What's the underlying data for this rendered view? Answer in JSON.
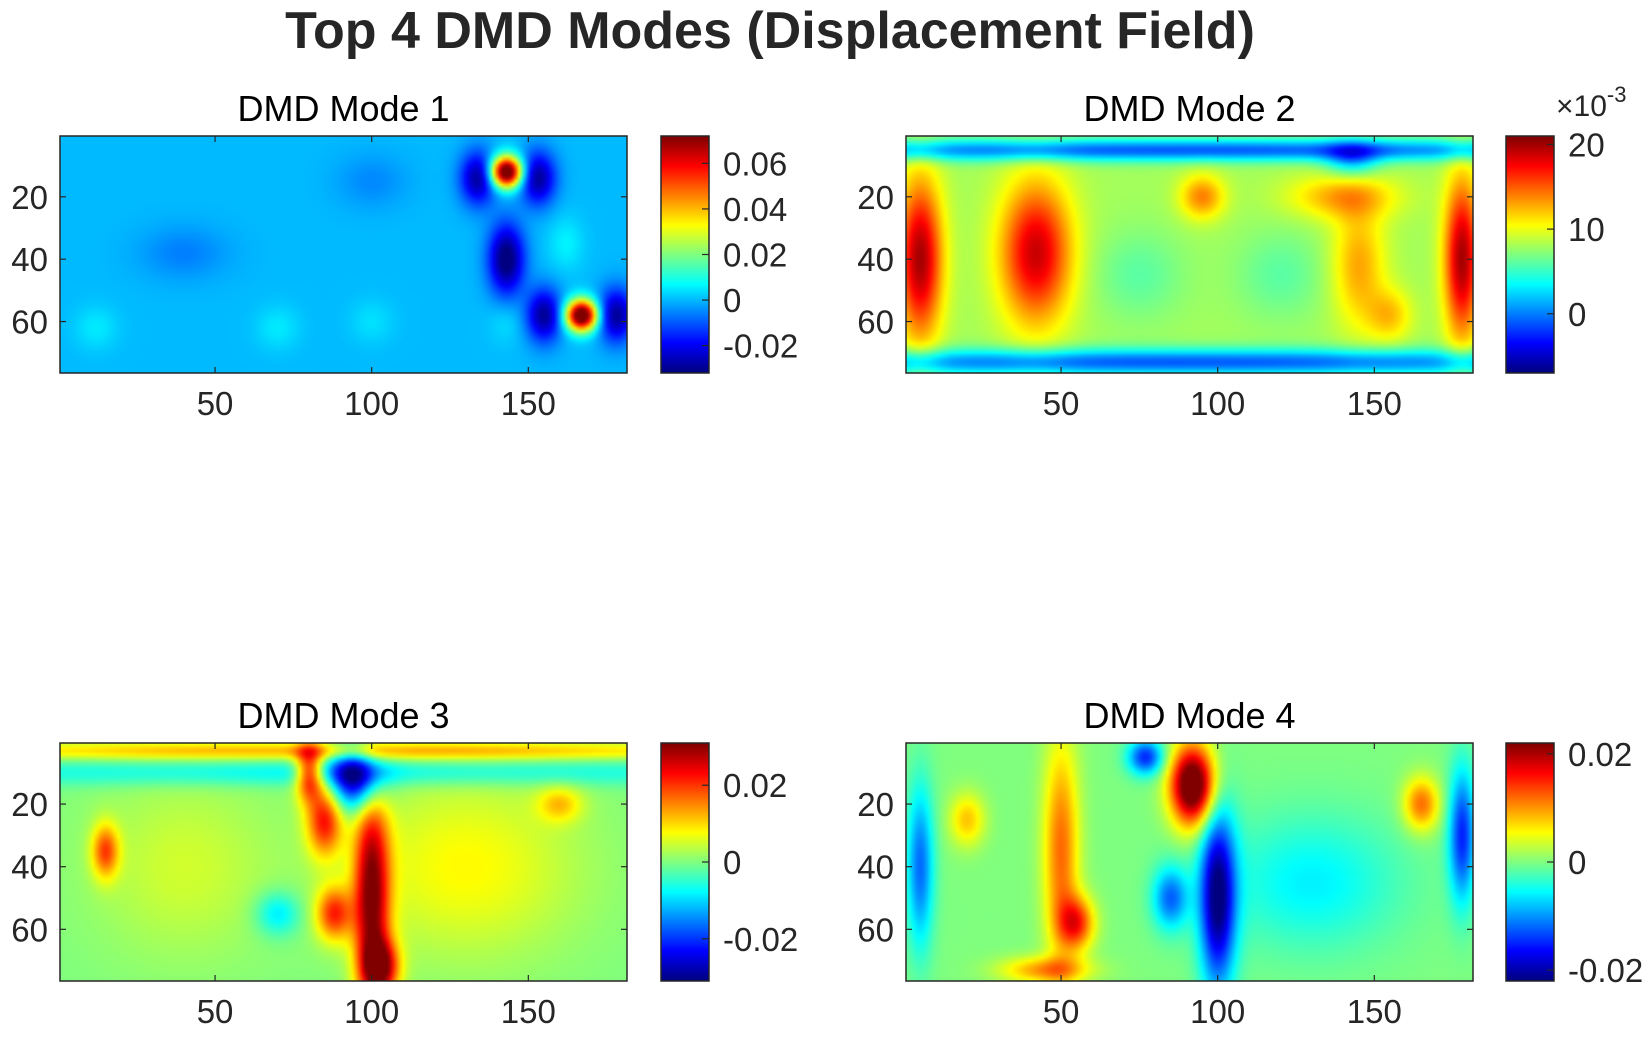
{
  "chart_data": [
    {
      "type": "heatmap",
      "title": "DMD Mode 1",
      "colormap": "jet",
      "xlim": [
        0.5,
        181.5
      ],
      "ylim": [
        0.5,
        76.5
      ],
      "y_reversed": true,
      "xticks": [
        50,
        100,
        150
      ],
      "yticks": [
        20,
        40,
        60
      ],
      "clim": [
        -0.032,
        0.072
      ],
      "colorbar_ticks": [
        -0.02,
        0,
        0.02,
        0.04,
        0.06
      ],
      "colorbar_tick_labels": [
        "-0.02",
        "0",
        "0.02",
        "0.04",
        "0.06"
      ],
      "colorbar_multiplier": "",
      "background": 0.0,
      "features": [
        {
          "x": 143,
          "y": 12,
          "sx": 3.5,
          "sy": 3.5,
          "v": 0.085
        },
        {
          "x": 167,
          "y": 58,
          "sx": 3.5,
          "sy": 3.5,
          "v": 0.085
        },
        {
          "x": 134,
          "y": 14,
          "sx": 4,
          "sy": 6,
          "v": -0.03
        },
        {
          "x": 153,
          "y": 14,
          "sx": 4,
          "sy": 6,
          "v": -0.03
        },
        {
          "x": 143,
          "y": 40,
          "sx": 4,
          "sy": 8,
          "v": -0.035
        },
        {
          "x": 155,
          "y": 58,
          "sx": 4,
          "sy": 6,
          "v": -0.03
        },
        {
          "x": 178,
          "y": 58,
          "sx": 4,
          "sy": 6,
          "v": -0.03
        },
        {
          "x": 162,
          "y": 35,
          "sx": 4,
          "sy": 6,
          "v": 0.006
        },
        {
          "x": 143,
          "y": 60,
          "sx": 4,
          "sy": 5,
          "v": 0.004
        },
        {
          "x": 40,
          "y": 38,
          "sx": 10,
          "sy": 6,
          "v": -0.006
        },
        {
          "x": 100,
          "y": 15,
          "sx": 8,
          "sy": 6,
          "v": -0.005
        },
        {
          "x": 12,
          "y": 62,
          "sx": 5,
          "sy": 5,
          "v": 0.005
        },
        {
          "x": 70,
          "y": 62,
          "sx": 5,
          "sy": 5,
          "v": 0.005
        },
        {
          "x": 100,
          "y": 60,
          "sx": 5,
          "sy": 5,
          "v": 0.004
        }
      ]
    },
    {
      "type": "heatmap",
      "title": "DMD Mode 2",
      "colormap": "jet",
      "xlim": [
        0.5,
        181.5
      ],
      "ylim": [
        0.5,
        76.5
      ],
      "y_reversed": true,
      "xticks": [
        50,
        100,
        150
      ],
      "yticks": [
        20,
        40,
        60
      ],
      "clim": [
        -7,
        21
      ],
      "colorbar_ticks": [
        0,
        10,
        20
      ],
      "colorbar_tick_labels": [
        "0",
        "10",
        "20"
      ],
      "colorbar_multiplier": "×10",
      "colorbar_exponent": "-3",
      "background": 8,
      "features": [
        {
          "x": 90,
          "y": 5,
          "sx": 120,
          "sy": 2.5,
          "v": -9
        },
        {
          "x": 90,
          "y": 73,
          "sx": 120,
          "sy": 3,
          "v": -9
        },
        {
          "x": 143,
          "y": 8,
          "sx": 6,
          "sy": 4,
          "v": -6
        },
        {
          "x": 5,
          "y": 40,
          "sx": 5,
          "sy": 18,
          "v": 12
        },
        {
          "x": 178,
          "y": 40,
          "sx": 4,
          "sy": 18,
          "v": 12
        },
        {
          "x": 42,
          "y": 38,
          "sx": 8,
          "sy": 16,
          "v": 11
        },
        {
          "x": 95,
          "y": 20,
          "sx": 5,
          "sy": 5,
          "v": 6
        },
        {
          "x": 140,
          "y": 20,
          "sx": 12,
          "sy": 5,
          "v": 5
        },
        {
          "x": 145,
          "y": 42,
          "sx": 6,
          "sy": 14,
          "v": 5
        },
        {
          "x": 155,
          "y": 58,
          "sx": 5,
          "sy": 6,
          "v": 4
        },
        {
          "x": 75,
          "y": 45,
          "sx": 10,
          "sy": 10,
          "v": -2
        },
        {
          "x": 120,
          "y": 45,
          "sx": 10,
          "sy": 10,
          "v": -2
        }
      ]
    },
    {
      "type": "heatmap",
      "title": "DMD Mode 3",
      "colormap": "jet",
      "xlim": [
        0.5,
        181.5
      ],
      "ylim": [
        0.5,
        76.5
      ],
      "y_reversed": true,
      "xticks": [
        50,
        100,
        150
      ],
      "yticks": [
        20,
        40,
        60
      ],
      "clim": [
        -0.031,
        0.031
      ],
      "colorbar_ticks": [
        -0.02,
        0,
        0.02
      ],
      "colorbar_tick_labels": [
        "-0.02",
        "0",
        "0.02"
      ],
      "colorbar_multiplier": "",
      "background": 0.0,
      "features": [
        {
          "x": 90,
          "y": 3,
          "sx": 120,
          "sy": 2,
          "v": 0.012
        },
        {
          "x": 90,
          "y": 10,
          "sx": 120,
          "sy": 3,
          "v": -0.008
        },
        {
          "x": 80,
          "y": 10,
          "sx": 3,
          "sy": 6,
          "v": 0.025
        },
        {
          "x": 85,
          "y": 25,
          "sx": 4,
          "sy": 8,
          "v": 0.022
        },
        {
          "x": 88,
          "y": 55,
          "sx": 4,
          "sy": 6,
          "v": 0.02
        },
        {
          "x": 100,
          "y": 50,
          "sx": 4,
          "sy": 25,
          "v": 0.03
        },
        {
          "x": 103,
          "y": 72,
          "sx": 4,
          "sy": 6,
          "v": 0.025
        },
        {
          "x": 95,
          "y": 12,
          "sx": 6,
          "sy": 7,
          "v": -0.03
        },
        {
          "x": 15,
          "y": 35,
          "sx": 3,
          "sy": 6,
          "v": 0.018
        },
        {
          "x": 130,
          "y": 40,
          "sx": 25,
          "sy": 20,
          "v": 0.008
        },
        {
          "x": 40,
          "y": 40,
          "sx": 20,
          "sy": 20,
          "v": 0.005
        },
        {
          "x": 70,
          "y": 55,
          "sx": 5,
          "sy": 5,
          "v": -0.01
        },
        {
          "x": 160,
          "y": 20,
          "sx": 5,
          "sy": 4,
          "v": 0.01
        }
      ]
    },
    {
      "type": "heatmap",
      "title": "DMD Mode 4",
      "colormap": "jet",
      "xlim": [
        0.5,
        181.5
      ],
      "ylim": [
        0.5,
        76.5
      ],
      "y_reversed": true,
      "xticks": [
        50,
        100,
        150
      ],
      "yticks": [
        20,
        40,
        60
      ],
      "clim": [
        -0.022,
        0.022
      ],
      "colorbar_ticks": [
        -0.02,
        0,
        0.02
      ],
      "colorbar_tick_labels": [
        "-0.02",
        "0",
        "0.02"
      ],
      "colorbar_multiplier": "",
      "background": 0.0,
      "features": [
        {
          "x": 92,
          "y": 14,
          "sx": 5,
          "sy": 9,
          "v": 0.028
        },
        {
          "x": 100,
          "y": 50,
          "sx": 4,
          "sy": 20,
          "v": -0.022
        },
        {
          "x": 5,
          "y": 40,
          "sx": 3,
          "sy": 18,
          "v": -0.012
        },
        {
          "x": 178,
          "y": 30,
          "sx": 3,
          "sy": 15,
          "v": -0.015
        },
        {
          "x": 85,
          "y": 50,
          "sx": 4,
          "sy": 7,
          "v": -0.012
        },
        {
          "x": 77,
          "y": 5,
          "sx": 4,
          "sy": 4,
          "v": -0.015
        },
        {
          "x": 50,
          "y": 35,
          "sx": 4,
          "sy": 25,
          "v": 0.012
        },
        {
          "x": 55,
          "y": 58,
          "sx": 4,
          "sy": 6,
          "v": 0.014
        },
        {
          "x": 20,
          "y": 25,
          "sx": 4,
          "sy": 6,
          "v": 0.008
        },
        {
          "x": 165,
          "y": 20,
          "sx": 4,
          "sy": 6,
          "v": 0.012
        },
        {
          "x": 130,
          "y": 45,
          "sx": 20,
          "sy": 15,
          "v": -0.006
        },
        {
          "x": 45,
          "y": 73,
          "sx": 10,
          "sy": 3,
          "v": 0.01
        }
      ]
    }
  ],
  "suptitle": "Top 4 DMD Modes (Displacement Field)"
}
